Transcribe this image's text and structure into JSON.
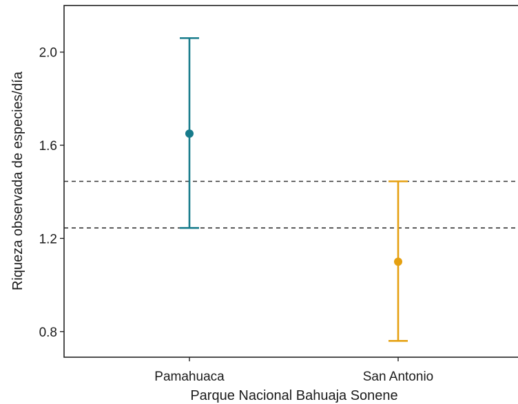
{
  "chart_data": {
    "type": "errorbar",
    "title": "",
    "xlabel": "Parque Nacional Bahuaja Sonene",
    "ylabel": "Riqueza observada de especies/día",
    "categories": [
      "Pamahuaca",
      "San Antonio"
    ],
    "series": [
      {
        "category": "Pamahuaca",
        "value": 1.65,
        "lower": 1.245,
        "upper": 2.06,
        "color": "#177b8b"
      },
      {
        "category": "San Antonio",
        "value": 1.1,
        "lower": 0.76,
        "upper": 1.445,
        "color": "#e5a010"
      }
    ],
    "reference_lines": [
      1.245,
      1.445
    ],
    "reference_line_style": "dashed",
    "ylim": [
      0.69,
      2.2
    ],
    "yticks": [
      0.8,
      1.2,
      1.6,
      2.0
    ],
    "ytick_labels": [
      "0.8",
      "1.2",
      "1.6",
      "2.0"
    ],
    "grid": false
  }
}
